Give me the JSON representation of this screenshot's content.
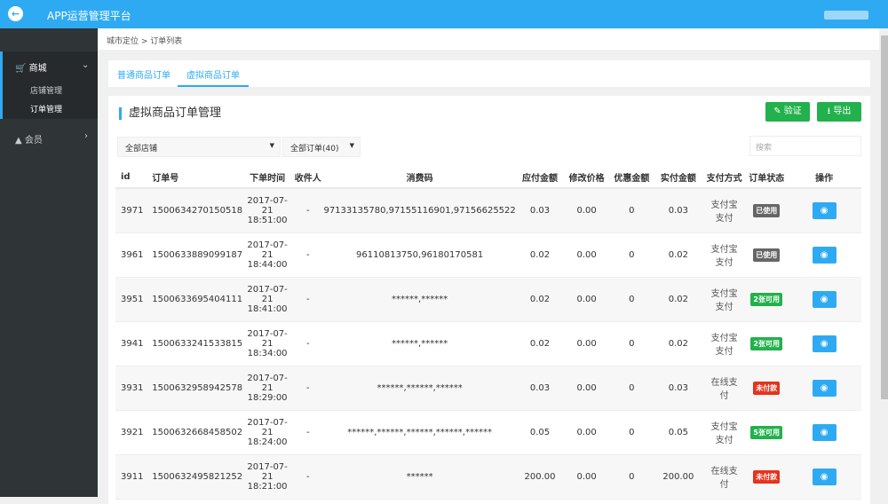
{
  "header": {
    "title": "APP运营管理平台"
  },
  "sidebar": {
    "items": [
      {
        "label": "商城",
        "children": [
          "店铺管理",
          "订单管理"
        ]
      },
      {
        "label": "会员"
      }
    ]
  },
  "breadcrumb": [
    "城市定位",
    "订单列表"
  ],
  "tabs": [
    "普通商品订单",
    "虚拟商品订单"
  ],
  "card": {
    "title": "虚拟商品订单管理",
    "verify_label": "验证",
    "export_label": "导出"
  },
  "filters": {
    "shop": "全部店铺",
    "orders": "全部订单(40)",
    "search_placeholder": "搜索"
  },
  "colors": {
    "accent": "#2eaaf3",
    "green": "#22b14c",
    "used": "#666666",
    "available": "#22b14c",
    "unpaid": "#e8321c"
  },
  "table": {
    "headers": [
      "id",
      "订单号",
      "下单时间",
      "收件人",
      "消费码",
      "应付金额",
      "修改价格",
      "优惠金额",
      "实付金额",
      "支付方式",
      "订单状态",
      "操作"
    ],
    "rows": [
      {
        "id": "3971",
        "order_no": "1500634270150518",
        "time": [
          "2017-07-",
          "21",
          "18:51:00"
        ],
        "receiver": "-",
        "code": "97133135780,97155116901,97156625522",
        "due": "0.03",
        "modified": "0.00",
        "discount": "0",
        "paid": "0.03",
        "method": "支付宝支付",
        "status": "已使用",
        "status_type": "used"
      },
      {
        "id": "3961",
        "order_no": "1500633889099187",
        "time": [
          "2017-07-",
          "21",
          "18:44:00"
        ],
        "receiver": "-",
        "code": "96110813750,96180170581",
        "due": "0.02",
        "modified": "0.00",
        "discount": "0",
        "paid": "0.02",
        "method": "支付宝支付",
        "status": "已使用",
        "status_type": "used"
      },
      {
        "id": "3951",
        "order_no": "1500633695404111",
        "time": [
          "2017-07-",
          "21",
          "18:41:00"
        ],
        "receiver": "-",
        "code": "******,******",
        "due": "0.02",
        "modified": "0.00",
        "discount": "0",
        "paid": "0.02",
        "method": "支付宝支付",
        "status": "2张可用",
        "status_type": "available"
      },
      {
        "id": "3941",
        "order_no": "1500633241533815",
        "time": [
          "2017-07-",
          "21",
          "18:34:00"
        ],
        "receiver": "-",
        "code": "******,******",
        "due": "0.02",
        "modified": "0.00",
        "discount": "0",
        "paid": "0.02",
        "method": "支付宝支付",
        "status": "2张可用",
        "status_type": "available"
      },
      {
        "id": "3931",
        "order_no": "1500632958942578",
        "time": [
          "2017-07-",
          "21",
          "18:29:00"
        ],
        "receiver": "-",
        "code": "******,******,******",
        "due": "0.03",
        "modified": "0.00",
        "discount": "0",
        "paid": "0.03",
        "method": "在线支付",
        "status": "未付款",
        "status_type": "unpaid"
      },
      {
        "id": "3921",
        "order_no": "1500632668458502",
        "time": [
          "2017-07-",
          "21",
          "18:24:00"
        ],
        "receiver": "-",
        "code": "******,******,******,******,******",
        "due": "0.05",
        "modified": "0.00",
        "discount": "0",
        "paid": "0.05",
        "method": "支付宝支付",
        "status": "5张可用",
        "status_type": "available"
      },
      {
        "id": "3911",
        "order_no": "1500632495821252",
        "time": [
          "2017-07-",
          "21",
          "18:21:00"
        ],
        "receiver": "-",
        "code": "******",
        "due": "200.00",
        "modified": "0.00",
        "discount": "0",
        "paid": "200.00",
        "method": "在线支付",
        "status": "未付款",
        "status_type": "unpaid"
      }
    ]
  }
}
